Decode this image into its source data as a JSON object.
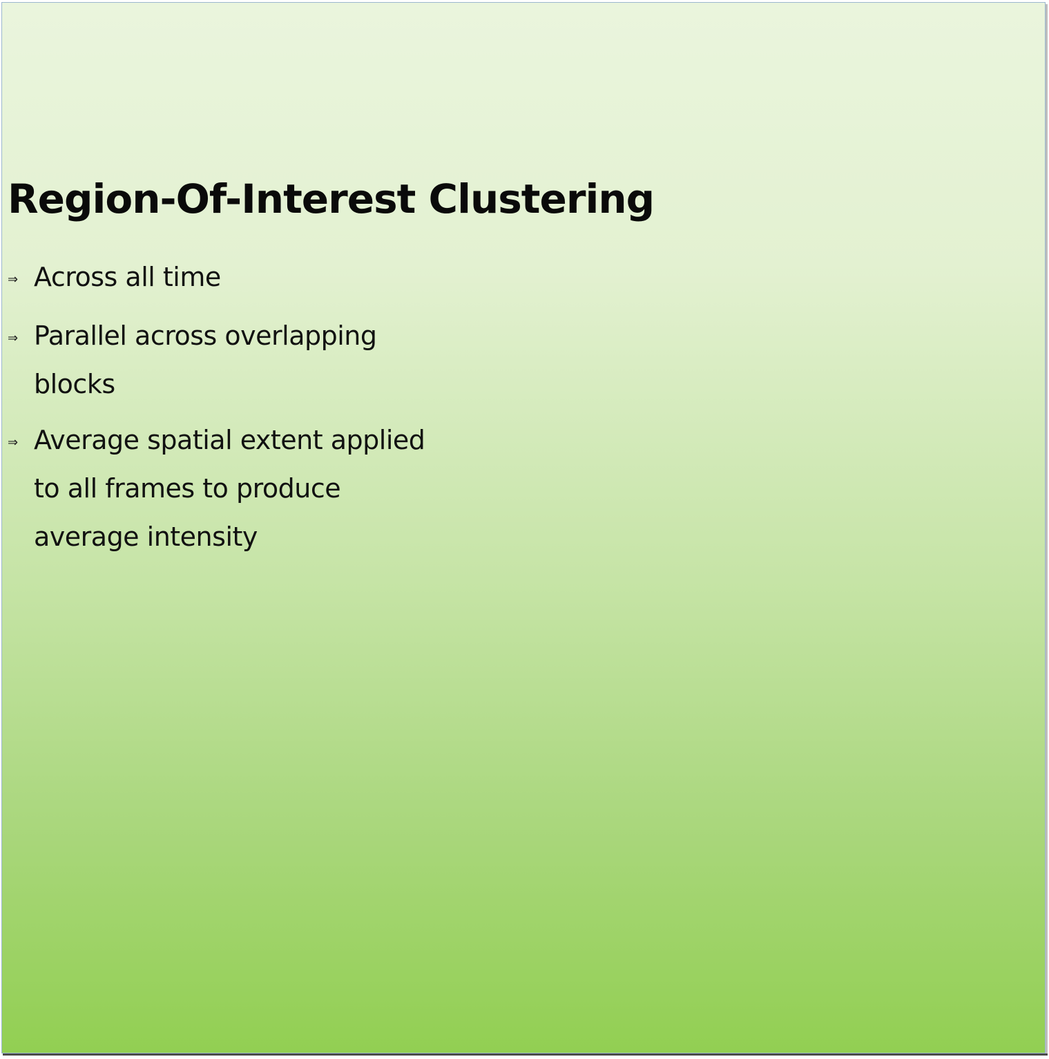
{
  "slide": {
    "title": "Region-Of-Interest Clustering",
    "bullet_marker": "⇒",
    "bullets": [
      {
        "text": "Across all time"
      },
      {
        "text": "Parallel across overlapping blocks"
      },
      {
        "text": "Average spatial extent applied to all frames to produce average intensity"
      }
    ]
  },
  "colors": {
    "background_top": "#eaf5dd",
    "background_bottom": "#92cf52",
    "text": "#0a0a0a"
  }
}
